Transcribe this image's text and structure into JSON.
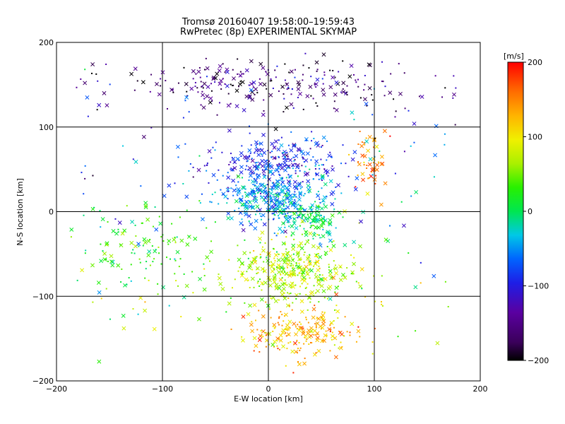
{
  "chart_data": {
    "type": "scatter",
    "title": "Tromsø 20160407 19:58:00–19:59:43",
    "subtitle": "RwPretec (8p) EXPERIMENTAL SKYMAP",
    "xlabel": "E-W location [km]",
    "ylabel": "N-S location [km]",
    "xlim": [
      -200,
      200
    ],
    "ylim": [
      -200,
      200
    ],
    "xticks": [
      -200,
      -100,
      0,
      100,
      200
    ],
    "yticks": [
      -200,
      -100,
      0,
      100,
      200
    ],
    "grid": true,
    "colorbar": {
      "title": "[m/s]",
      "min": -200,
      "max": 200,
      "ticks": [
        200,
        100,
        0,
        -100,
        -200
      ],
      "colormap": "rainbow (black–purple–blue–cyan–green–yellow–orange–red)"
    },
    "markers": [
      "cross",
      "dot"
    ],
    "point_clusters": [
      {
        "region": "upper band",
        "center": [
          0,
          150
        ],
        "spread": [
          120,
          22
        ],
        "value": -160,
        "count": 220
      },
      {
        "region": "north-center",
        "center": [
          10,
          60
        ],
        "spread": [
          55,
          28
        ],
        "value": -95,
        "count": 260
      },
      {
        "region": "center",
        "center": [
          5,
          15
        ],
        "spread": [
          40,
          25
        ],
        "value": -50,
        "count": 350
      },
      {
        "region": "east core",
        "center": [
          40,
          -10
        ],
        "spread": [
          25,
          20
        ],
        "value": 0,
        "count": 120
      },
      {
        "region": "south-center",
        "center": [
          20,
          -70
        ],
        "spread": [
          45,
          30
        ],
        "value": 70,
        "count": 350
      },
      {
        "region": "far south",
        "center": [
          30,
          -140
        ],
        "spread": [
          45,
          25
        ],
        "value": 130,
        "count": 200
      },
      {
        "region": "east patch",
        "center": [
          95,
          60
        ],
        "spread": [
          15,
          30
        ],
        "value": 150,
        "count": 50
      },
      {
        "region": "west",
        "center": [
          -120,
          -40
        ],
        "spread": [
          50,
          45
        ],
        "value": 30,
        "count": 120
      },
      {
        "region": "scattered",
        "center": [
          0,
          0
        ],
        "spread": [
          180,
          180
        ],
        "value": 0,
        "count": 200
      }
    ]
  }
}
